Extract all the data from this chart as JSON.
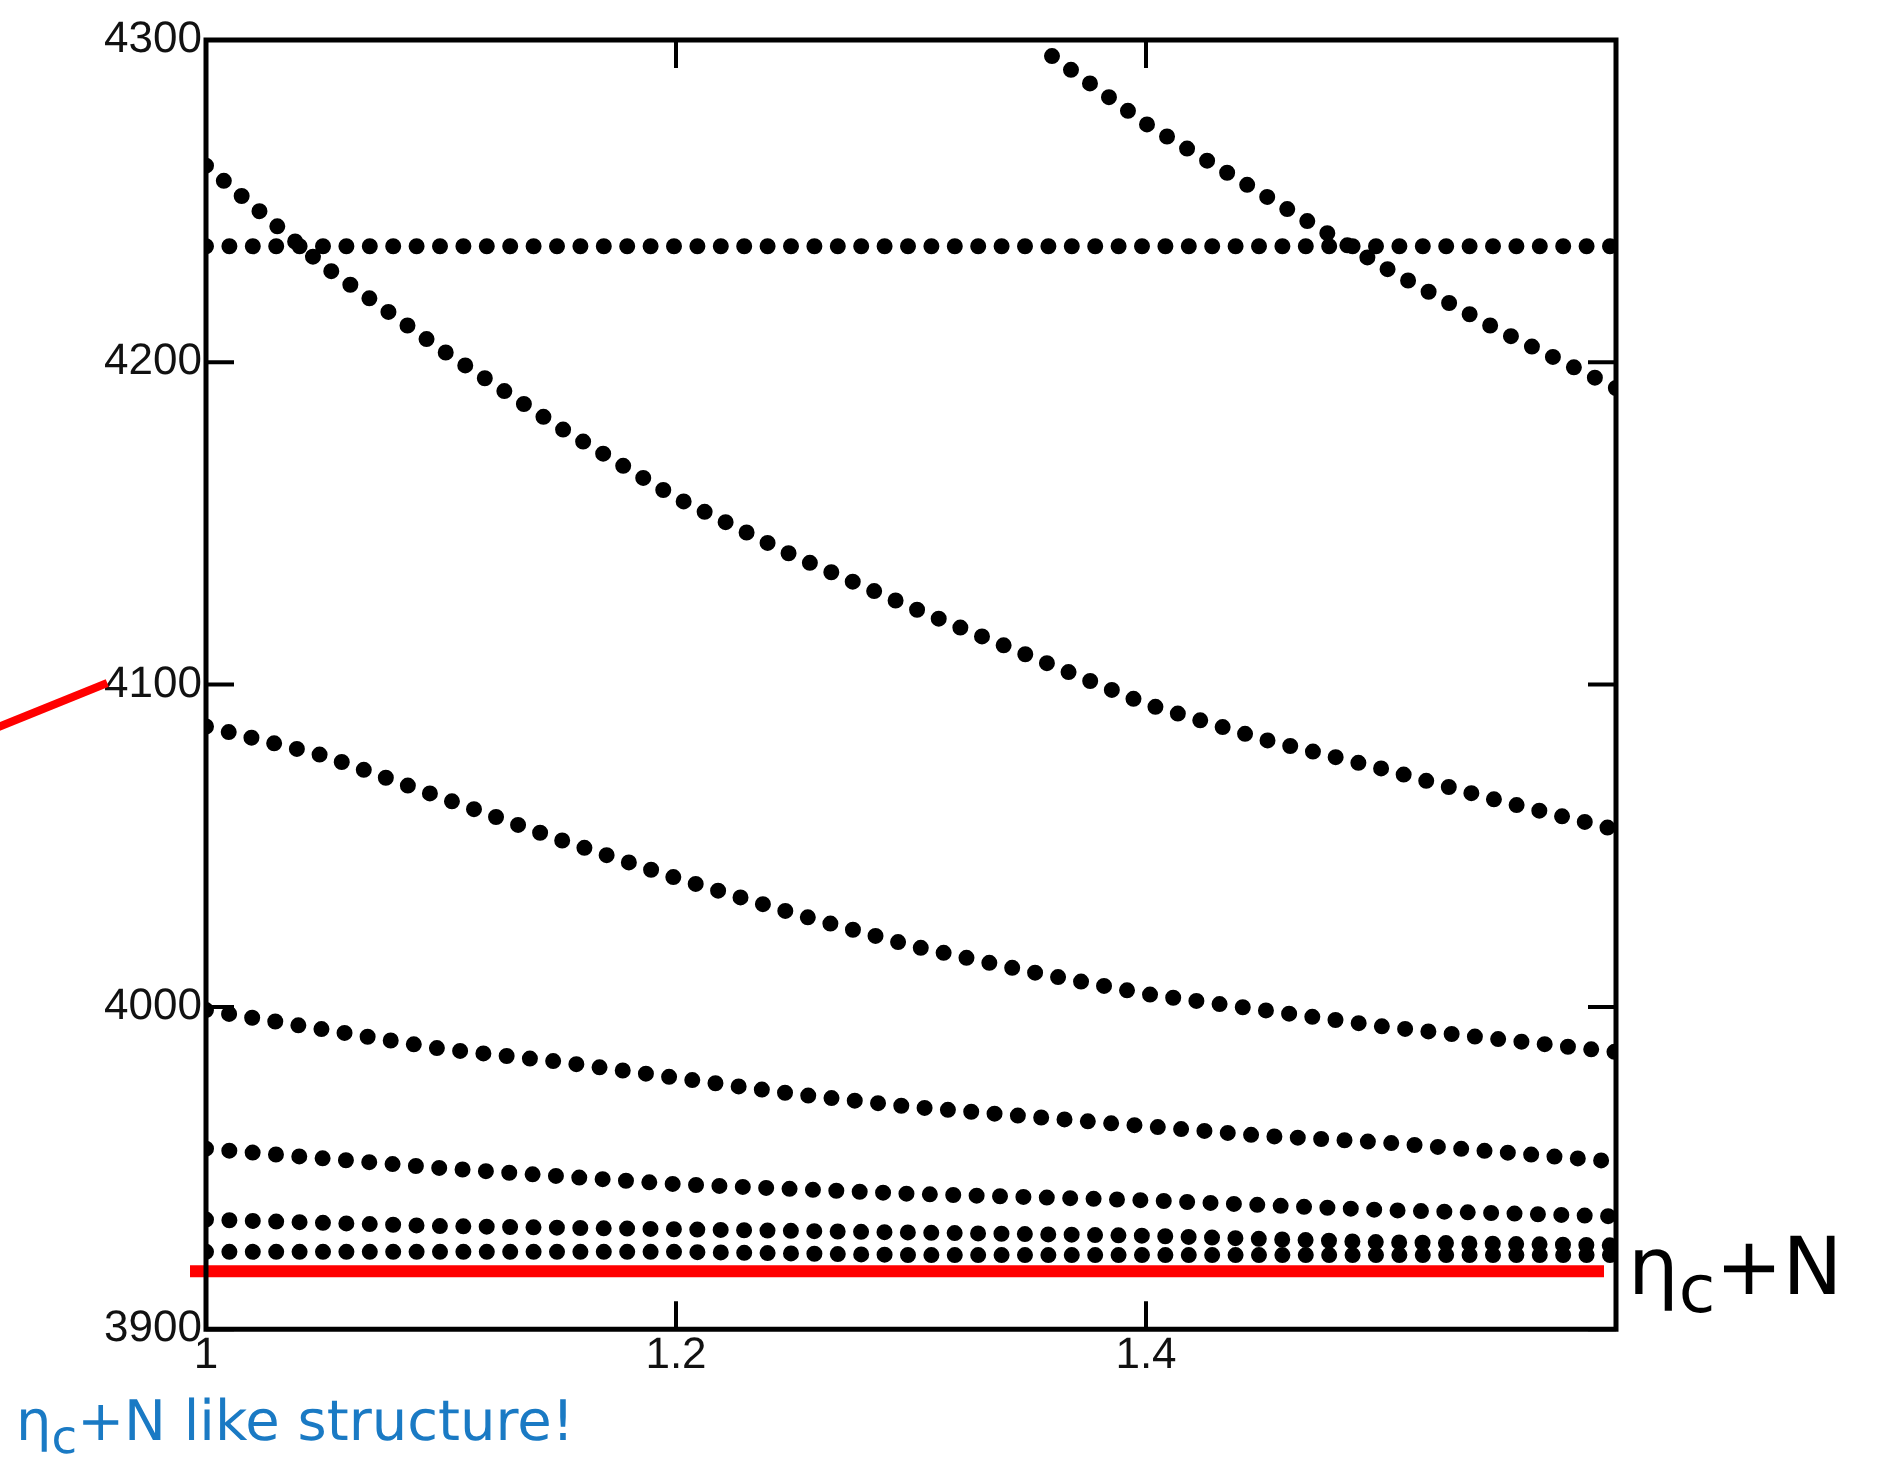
{
  "chart_data": {
    "type": "line",
    "marker": "none",
    "line_style": "dotted",
    "grid": false,
    "legend": false,
    "xlim": [
      1,
      1.6
    ],
    "xticks": [
      1,
      1.2,
      1.4
    ],
    "ylim": [
      3900,
      4300
    ],
    "yticks": [
      3900,
      4000,
      4100,
      4200,
      4300
    ],
    "series": [
      {
        "color": "#000000",
        "x": [
          1,
          1.1,
          1.2,
          1.3,
          1.4,
          1.5,
          1.6
        ],
        "values": [
          4236,
          4236,
          4236,
          4236,
          4236,
          4236,
          4236
        ]
      },
      {
        "color": "#000000",
        "x": [
          1,
          1.05,
          1.1,
          1.15,
          1.2,
          1.25,
          1.3,
          1.35,
          1.4,
          1.45,
          1.5,
          1.55,
          1.6
        ],
        "values": [
          4261,
          4230,
          4204,
          4180,
          4158,
          4140,
          4124,
          4109,
          4094,
          4083,
          4074,
          4064,
          4055
        ]
      },
      {
        "color": "#000000",
        "x": [
          1.36,
          1.4,
          1.45,
          1.5,
          1.55,
          1.6
        ],
        "values": [
          4295,
          4274,
          4252,
          4230,
          4210,
          4192
        ]
      },
      {
        "color": "#000000",
        "x": [
          1,
          1.05,
          1.1,
          1.15,
          1.2,
          1.25,
          1.3,
          1.35,
          1.4,
          1.45,
          1.5,
          1.55,
          1.6
        ],
        "values": [
          4087,
          4078,
          4065,
          4052,
          4040,
          4029,
          4019,
          4011,
          4004,
          3999,
          3994,
          3990,
          3986
        ]
      },
      {
        "color": "#000000",
        "x": [
          1,
          1.05,
          1.1,
          1.15,
          1.2,
          1.25,
          1.3,
          1.35,
          1.4,
          1.45,
          1.5,
          1.55,
          1.6
        ],
        "values": [
          3999,
          3993,
          3987,
          3983,
          3978,
          3973,
          3969,
          3966,
          3963,
          3960,
          3958,
          3955,
          3952
        ]
      },
      {
        "color": "#000000",
        "x": [
          1,
          1.1,
          1.2,
          1.3,
          1.4,
          1.5,
          1.6
        ],
        "values": [
          3956,
          3950,
          3945,
          3942,
          3940,
          3937,
          3935
        ]
      },
      {
        "color": "#000000",
        "x": [
          1,
          1.1,
          1.2,
          1.3,
          1.4,
          1.5,
          1.6
        ],
        "values": [
          3934,
          3932,
          3931,
          3930,
          3929,
          3927,
          3926
        ]
      },
      {
        "color": "#000000",
        "x": [
          1,
          1.1,
          1.2,
          1.3,
          1.4,
          1.5,
          1.6
        ],
        "values": [
          3924,
          3924,
          3924,
          3923,
          3923,
          3923,
          3923
        ]
      }
    ],
    "ref_lines": [
      {
        "axis": "y",
        "value": 3918,
        "label": "η$_{c}$+N",
        "color": "#ff0000",
        "line_style": "solid"
      }
    ],
    "annotations": [
      "η$_{c}$+N like structure!"
    ]
  }
}
